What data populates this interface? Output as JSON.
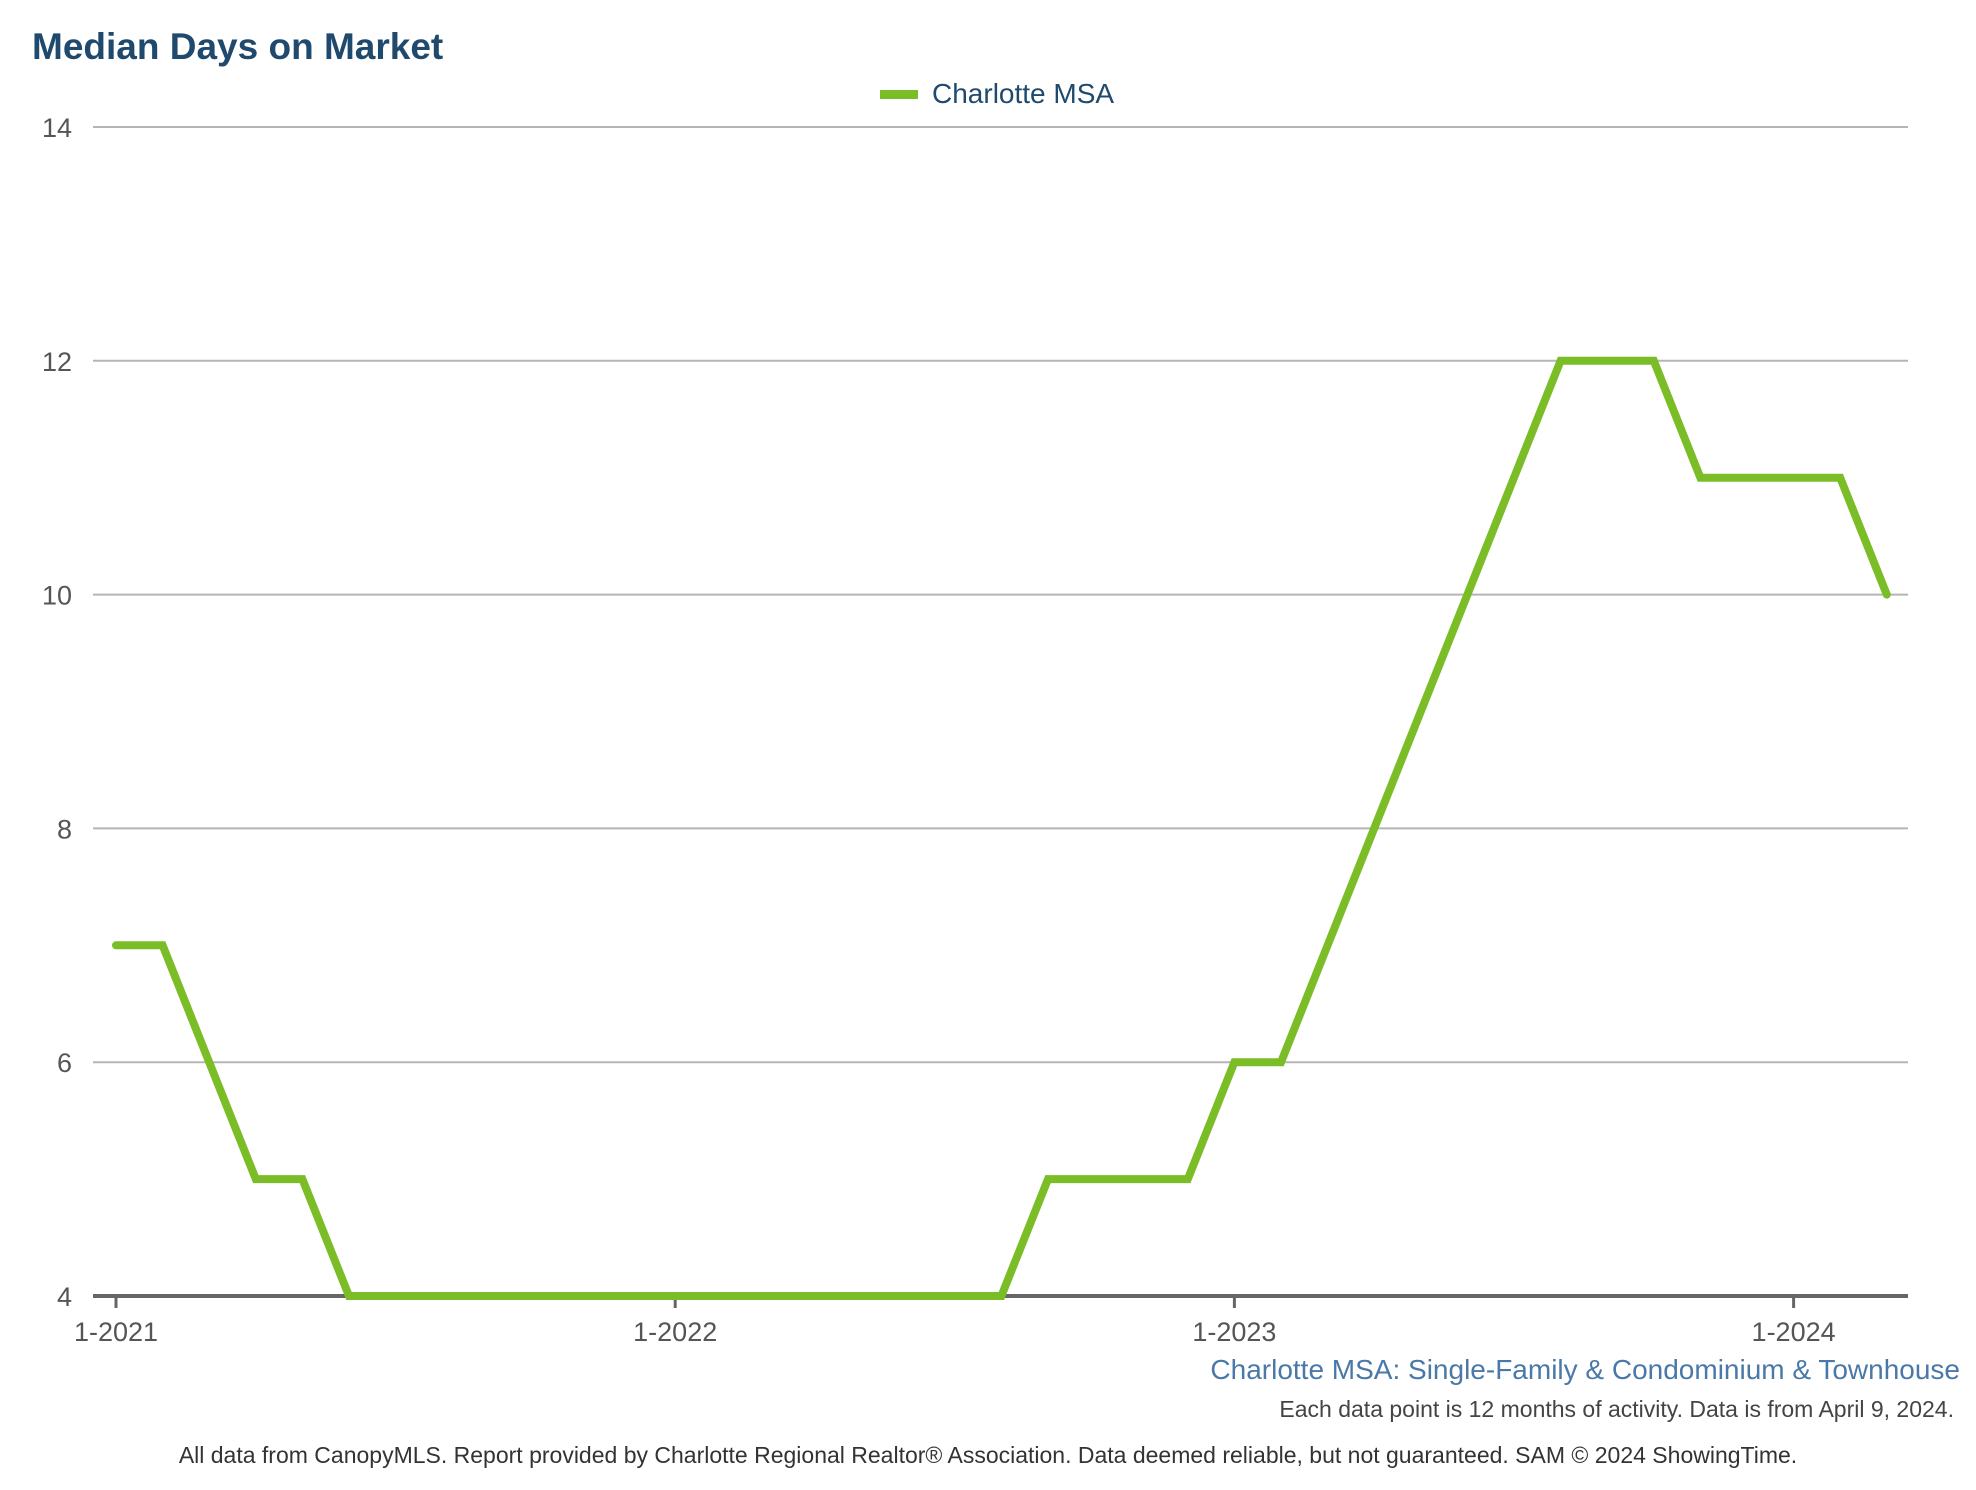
{
  "chart_data": {
    "type": "line",
    "title": "Median Days on Market",
    "xlabel": "",
    "ylabel": "",
    "ylim": [
      4,
      14
    ],
    "yticks": [
      4,
      6,
      8,
      10,
      12,
      14
    ],
    "x_tick_labels": [
      "1-2021",
      "1-2022",
      "1-2023",
      "1-2024"
    ],
    "x": [
      "1-2021",
      "2-2021",
      "3-2021",
      "4-2021",
      "5-2021",
      "6-2021",
      "7-2021",
      "8-2021",
      "9-2021",
      "10-2021",
      "11-2021",
      "12-2021",
      "1-2022",
      "2-2022",
      "3-2022",
      "4-2022",
      "5-2022",
      "6-2022",
      "7-2022",
      "8-2022",
      "9-2022",
      "10-2022",
      "11-2022",
      "12-2022",
      "1-2023",
      "2-2023",
      "3-2023",
      "4-2023",
      "5-2023",
      "6-2023",
      "7-2023",
      "8-2023",
      "9-2023",
      "10-2023",
      "11-2023",
      "12-2023",
      "1-2024",
      "2-2024",
      "3-2024"
    ],
    "series": [
      {
        "name": "Charlotte MSA",
        "color": "#7bbd26",
        "values": [
          7,
          7,
          6,
          5,
          5,
          4,
          4,
          4,
          4,
          4,
          4,
          4,
          4,
          4,
          4,
          4,
          4,
          4,
          4,
          4,
          5,
          5,
          5,
          5,
          6,
          6,
          7,
          8,
          9,
          10,
          11,
          12,
          12,
          12,
          11,
          11,
          11,
          11,
          10
        ]
      }
    ],
    "grid": true,
    "legend_placement": "top-center"
  },
  "subtitle": "Charlotte MSA: Single-Family & Condominium & Townhouse",
  "note": "Each data point is 12 months of activity. Data is from April 9, 2024.",
  "footer": "All data from CanopyMLS. Report provided by Charlotte Regional Realtor® Association. Data deemed reliable, but not guaranteed. SAM © 2024 ShowingTime."
}
